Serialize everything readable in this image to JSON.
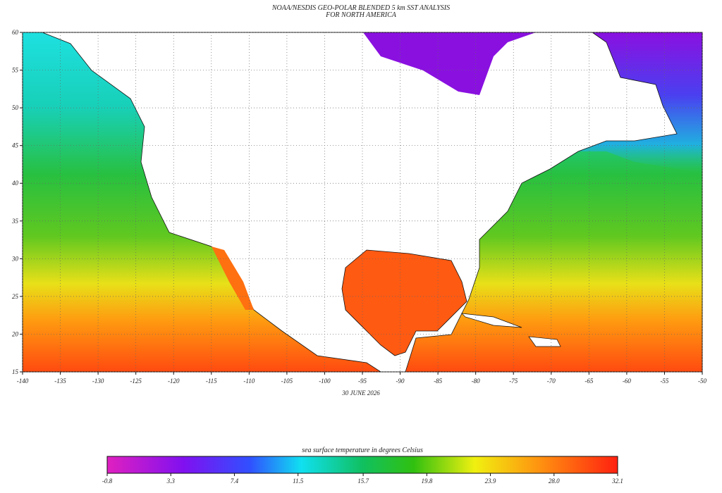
{
  "title": [
    "NOAA/NESDIS GEO-POLAR BLENDED 5 km SST ANALYSIS",
    "FOR NORTH AMERICA"
  ],
  "date": "30 JUNE 2026",
  "map": {
    "xlim": [
      -140,
      -50
    ],
    "ylim": [
      15,
      60
    ],
    "xticks": [
      -140,
      -135,
      -130,
      -125,
      -120,
      -115,
      -110,
      -105,
      -100,
      -95,
      -90,
      -85,
      -80,
      -75,
      -70,
      -65,
      -60,
      -55,
      -50
    ],
    "yticks": [
      15,
      20,
      25,
      30,
      35,
      40,
      45,
      50,
      55,
      60
    ]
  },
  "colorbar": {
    "label": "sea surface temperature in degrees Celsius",
    "lim": [
      -0.8,
      32.1
    ],
    "ticks": [
      -0.8,
      3.3,
      7.4,
      11.5,
      15.7,
      19.8,
      23.9,
      {
        "value": 28,
        "label": "28.0"
      },
      32.1
    ]
  }
}
